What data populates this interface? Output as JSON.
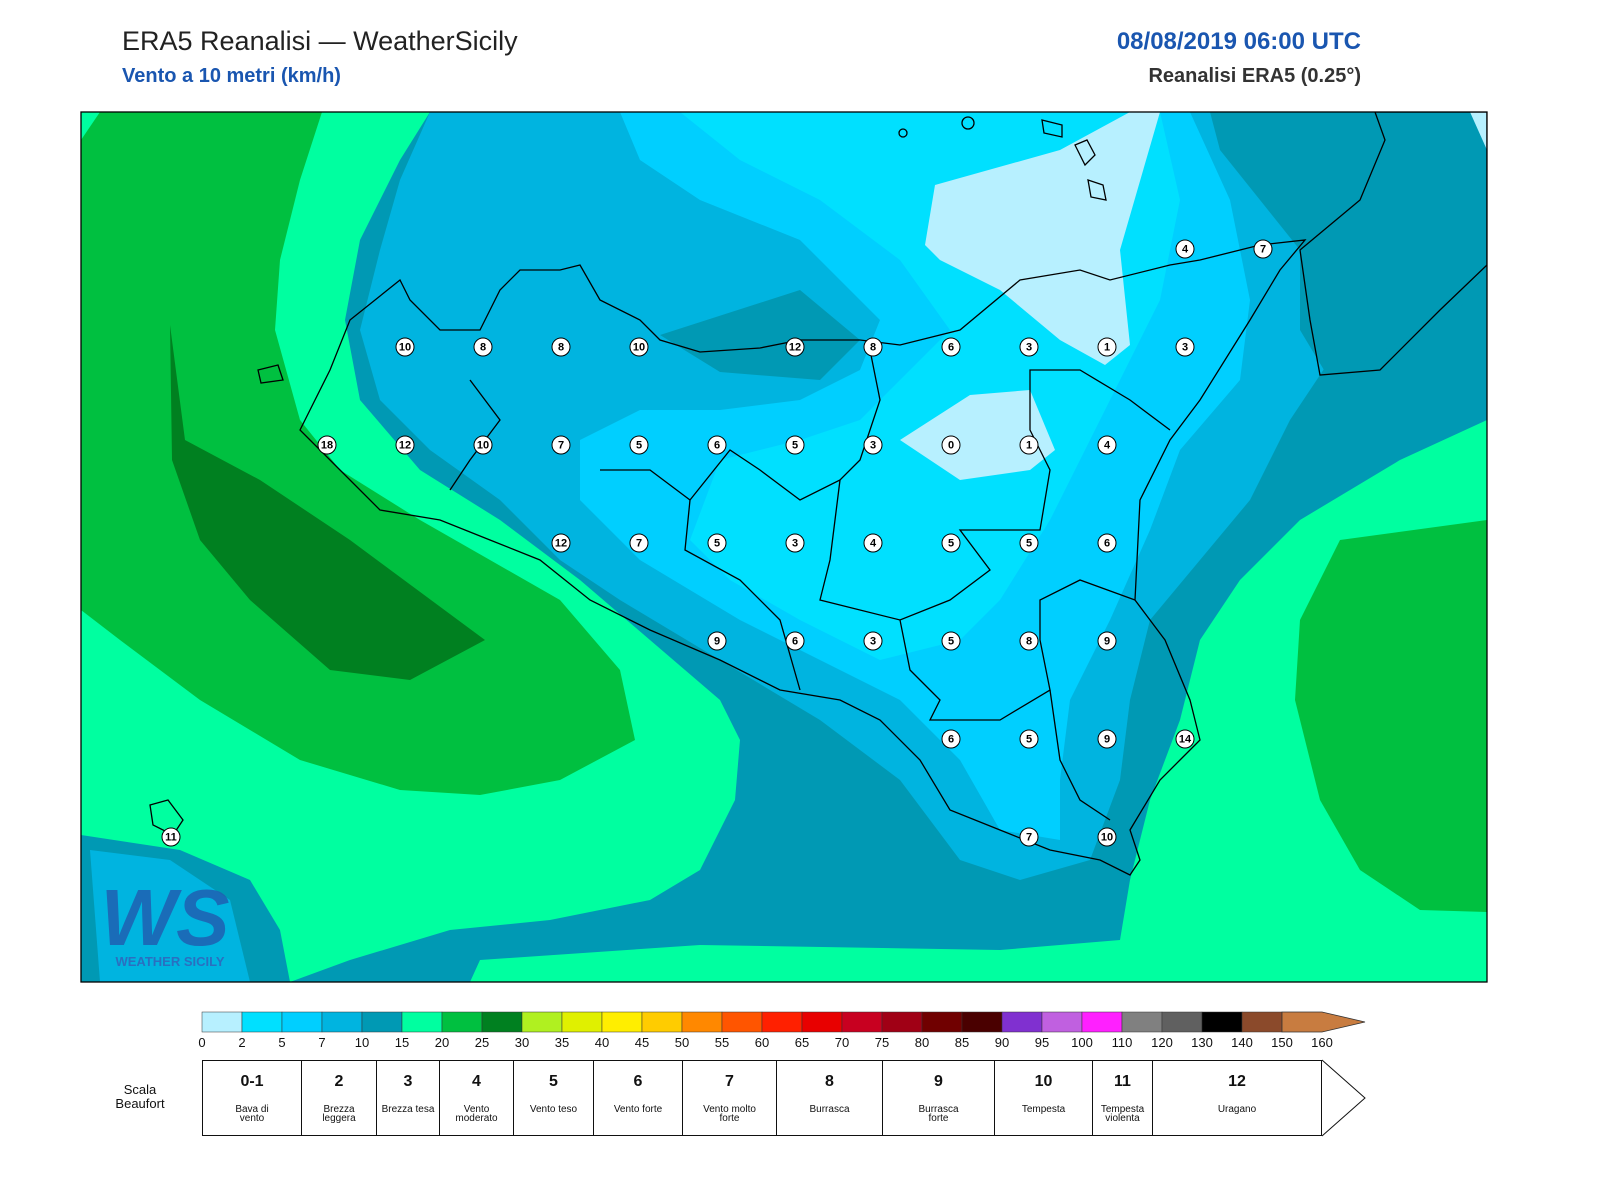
{
  "header": {
    "title": "ERA5 Reanalisi — WeatherSicily",
    "subtitle": "Vento a 10 metri (km/h)",
    "date": "08/08/2019 06:00 UTC",
    "source": "Reanalisi ERA5 (0.25°)"
  },
  "logo": {
    "mark": "WS",
    "text": "WEATHER SICILY"
  },
  "wind_kmh": [
    4,
    7,
    10,
    8,
    8,
    10,
    12,
    8,
    6,
    3,
    1,
    3,
    18,
    12,
    10,
    7,
    5,
    6,
    5,
    3,
    0,
    1,
    4,
    12,
    7,
    5,
    3,
    4,
    5,
    5,
    6,
    9,
    6,
    3,
    5,
    8,
    9,
    6,
    5,
    9,
    14,
    11,
    7,
    10
  ],
  "colorbar": {
    "ticks": [
      0,
      2,
      5,
      7,
      10,
      15,
      20,
      25,
      30,
      35,
      40,
      45,
      50,
      55,
      60,
      65,
      70,
      75,
      80,
      85,
      90,
      95,
      100,
      110,
      120,
      130,
      140,
      150,
      160
    ],
    "colors": [
      "#b7f0ff",
      "#00e0ff",
      "#00cfff",
      "#00b4e0",
      "#0099b4",
      "#00ffa0",
      "#00c040",
      "#008020",
      "#b0f020",
      "#e0f000",
      "#ffee00",
      "#ffcc00",
      "#ff8800",
      "#ff5500",
      "#ff2000",
      "#e80000",
      "#c80020",
      "#a00015",
      "#700000",
      "#4a0000",
      "#8030d0",
      "#c060e0",
      "#ff20ff",
      "#808080",
      "#606060",
      "#000000",
      "#8b4a2b",
      "#c87c40"
    ]
  },
  "beaufort": {
    "label": "Scala Beaufort",
    "classes": [
      {
        "force": "0-1",
        "desc": "Bava di vento"
      },
      {
        "force": 2,
        "desc": "Brezza leggera"
      },
      {
        "force": 3,
        "desc": "Brezza tesa"
      },
      {
        "force": 4,
        "desc": "Vento moderato"
      },
      {
        "force": 5,
        "desc": "Vento teso"
      },
      {
        "force": 6,
        "desc": "Vento forte"
      },
      {
        "force": 7,
        "desc": "Vento molto forte"
      },
      {
        "force": 8,
        "desc": "Burrasca"
      },
      {
        "force": 9,
        "desc": "Burrasca forte"
      },
      {
        "force": 10,
        "desc": "Tempesta"
      },
      {
        "force": 11,
        "desc": "Tempesta violenta"
      },
      {
        "force": 12,
        "desc": "Uragano"
      }
    ]
  }
}
